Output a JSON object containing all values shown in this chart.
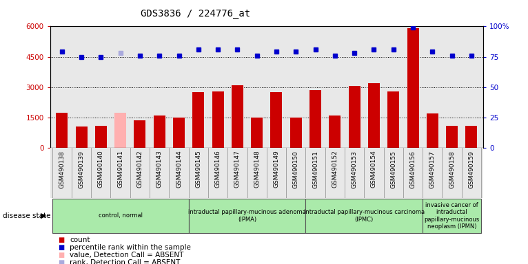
{
  "title": "GDS3836 / 224776_at",
  "samples": [
    "GSM490138",
    "GSM490139",
    "GSM490140",
    "GSM490141",
    "GSM490142",
    "GSM490143",
    "GSM490144",
    "GSM490145",
    "GSM490146",
    "GSM490147",
    "GSM490148",
    "GSM490149",
    "GSM490150",
    "GSM490151",
    "GSM490152",
    "GSM490153",
    "GSM490154",
    "GSM490155",
    "GSM490156",
    "GSM490157",
    "GSM490158",
    "GSM490159"
  ],
  "counts": [
    1750,
    1050,
    1100,
    1750,
    1350,
    1600,
    1500,
    2750,
    2800,
    3100,
    1500,
    2750,
    1500,
    2850,
    1600,
    3050,
    3200,
    2800,
    5900,
    1700,
    1100,
    1100
  ],
  "percentile": [
    79,
    75,
    75,
    78,
    76,
    76,
    76,
    81,
    81,
    81,
    76,
    79,
    79,
    81,
    76,
    78,
    81,
    81,
    99,
    79,
    76,
    76
  ],
  "absent": [
    false,
    false,
    false,
    true,
    false,
    false,
    false,
    false,
    false,
    false,
    false,
    false,
    false,
    false,
    false,
    false,
    false,
    false,
    false,
    false,
    false,
    false
  ],
  "groups": [
    {
      "label": "control, normal",
      "start": 0,
      "end": 6
    },
    {
      "label": "intraductal papillary-mucinous adenoma\n(IPMA)",
      "start": 7,
      "end": 12
    },
    {
      "label": "intraductal papillary-mucinous carcinoma\n(IPMC)",
      "start": 13,
      "end": 18
    },
    {
      "label": "invasive cancer of\nintraductal\npapillary-mucinous\nneoplasm (IPMN)",
      "start": 19,
      "end": 21
    }
  ],
  "ylim_left": [
    0,
    6000
  ],
  "ylim_right": [
    0,
    100
  ],
  "yticks_left": [
    0,
    1500,
    3000,
    4500,
    6000
  ],
  "yticks_right": [
    0,
    25,
    50,
    75,
    100
  ],
  "bar_color": "#cc0000",
  "absent_bar_color": "#ffb0b0",
  "dot_color": "#0000cc",
  "absent_dot_color": "#aaaadd",
  "group_color": "#aaeaaa",
  "left_tick_color": "#cc0000",
  "right_tick_color": "#0000cc",
  "plot_bg_color": "#e8e8e8"
}
